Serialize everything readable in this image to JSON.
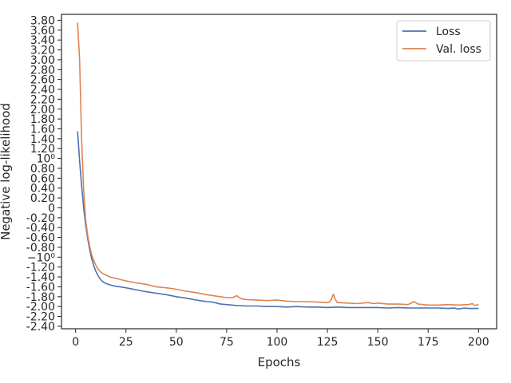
{
  "chart_data": {
    "type": "line",
    "xlabel": "Epochs",
    "ylabel": "Negative log-likelihood",
    "xlim": [
      -7,
      209
    ],
    "ylim": [
      -2.45,
      3.92
    ],
    "y_scale": "symlog",
    "grid": false,
    "legend_position": "top-right",
    "x_ticks": [
      {
        "value": 0,
        "label": "0"
      },
      {
        "value": 25,
        "label": "25"
      },
      {
        "value": 50,
        "label": "50"
      },
      {
        "value": 75,
        "label": "75"
      },
      {
        "value": 100,
        "label": "100"
      },
      {
        "value": 125,
        "label": "125"
      },
      {
        "value": 150,
        "label": "150"
      },
      {
        "value": 175,
        "label": "175"
      },
      {
        "value": 200,
        "label": "200"
      }
    ],
    "y_ticks": [
      {
        "value": 3.8,
        "label": "3.80"
      },
      {
        "value": 3.6,
        "label": "3.60"
      },
      {
        "value": 3.4,
        "label": "3.40"
      },
      {
        "value": 3.2,
        "label": "3.20"
      },
      {
        "value": 3.0,
        "label": "3.00"
      },
      {
        "value": 2.8,
        "label": "2.80"
      },
      {
        "value": 2.6,
        "label": "2.60"
      },
      {
        "value": 2.4,
        "label": "2.40"
      },
      {
        "value": 2.2,
        "label": "2.20"
      },
      {
        "value": 2.0,
        "label": "2.00"
      },
      {
        "value": 1.8,
        "label": "1.80"
      },
      {
        "value": 1.6,
        "label": "1.60"
      },
      {
        "value": 1.4,
        "label": "1.40"
      },
      {
        "value": 1.2,
        "label": "1.20"
      },
      {
        "value": 1.0,
        "label": "10⁰"
      },
      {
        "value": 0.8,
        "label": "0.80"
      },
      {
        "value": 0.6,
        "label": "0.60"
      },
      {
        "value": 0.4,
        "label": "0.40"
      },
      {
        "value": 0.2,
        "label": "0.20"
      },
      {
        "value": 0.0,
        "label": "0"
      },
      {
        "value": -0.2,
        "label": "-0.20"
      },
      {
        "value": -0.4,
        "label": "-0.40"
      },
      {
        "value": -0.6,
        "label": "-0.60"
      },
      {
        "value": -0.8,
        "label": "-0.80"
      },
      {
        "value": -1.0,
        "label": "−10⁰"
      },
      {
        "value": -1.2,
        "label": "-1.20"
      },
      {
        "value": -1.4,
        "label": "-1.40"
      },
      {
        "value": -1.6,
        "label": "-1.60"
      },
      {
        "value": -1.8,
        "label": "-1.80"
      },
      {
        "value": -2.0,
        "label": "-2.00"
      },
      {
        "value": -2.2,
        "label": "-2.20"
      },
      {
        "value": -2.4,
        "label": "-2.40"
      }
    ],
    "series": [
      {
        "name": "Loss",
        "color": "#4c72b0",
        "points": [
          [
            1,
            1.55
          ],
          [
            2,
            0.95
          ],
          [
            3,
            0.45
          ],
          [
            4,
            0.0
          ],
          [
            5,
            -0.35
          ],
          [
            6,
            -0.62
          ],
          [
            7,
            -0.85
          ],
          [
            8,
            -1.03
          ],
          [
            9,
            -1.17
          ],
          [
            10,
            -1.28
          ],
          [
            11,
            -1.36
          ],
          [
            12,
            -1.43
          ],
          [
            13,
            -1.48
          ],
          [
            14,
            -1.51
          ],
          [
            15,
            -1.53
          ],
          [
            17,
            -1.56
          ],
          [
            20,
            -1.59
          ],
          [
            22,
            -1.6
          ],
          [
            25,
            -1.62
          ],
          [
            30,
            -1.66
          ],
          [
            35,
            -1.7
          ],
          [
            40,
            -1.73
          ],
          [
            45,
            -1.76
          ],
          [
            50,
            -1.8
          ],
          [
            55,
            -1.83
          ],
          [
            60,
            -1.87
          ],
          [
            65,
            -1.9
          ],
          [
            68,
            -1.91
          ],
          [
            70,
            -1.93
          ],
          [
            72,
            -1.95
          ],
          [
            75,
            -1.96
          ],
          [
            80,
            -1.98
          ],
          [
            85,
            -1.99
          ],
          [
            90,
            -1.99
          ],
          [
            95,
            -2.0
          ],
          [
            100,
            -2.0
          ],
          [
            105,
            -2.01
          ],
          [
            110,
            -2.0
          ],
          [
            115,
            -2.01
          ],
          [
            120,
            -2.01
          ],
          [
            125,
            -2.02
          ],
          [
            130,
            -2.01
          ],
          [
            135,
            -2.02
          ],
          [
            140,
            -2.02
          ],
          [
            145,
            -2.02
          ],
          [
            150,
            -2.02
          ],
          [
            155,
            -2.03
          ],
          [
            160,
            -2.02
          ],
          [
            165,
            -2.03
          ],
          [
            170,
            -2.03
          ],
          [
            175,
            -2.03
          ],
          [
            180,
            -2.03
          ],
          [
            185,
            -2.04
          ],
          [
            188,
            -2.03
          ],
          [
            190,
            -2.05
          ],
          [
            193,
            -2.03
          ],
          [
            195,
            -2.04
          ],
          [
            198,
            -2.04
          ],
          [
            200,
            -2.04
          ]
        ]
      },
      {
        "name": "Val. loss",
        "color": "#dd8452",
        "points": [
          [
            1,
            3.75
          ],
          [
            2,
            3.0
          ],
          [
            3,
            1.4
          ],
          [
            4,
            0.35
          ],
          [
            5,
            -0.25
          ],
          [
            6,
            -0.55
          ],
          [
            7,
            -0.78
          ],
          [
            8,
            -0.95
          ],
          [
            9,
            -1.07
          ],
          [
            10,
            -1.16
          ],
          [
            11,
            -1.23
          ],
          [
            12,
            -1.28
          ],
          [
            13,
            -1.32
          ],
          [
            14,
            -1.34
          ],
          [
            15,
            -1.36
          ],
          [
            17,
            -1.4
          ],
          [
            20,
            -1.43
          ],
          [
            25,
            -1.48
          ],
          [
            30,
            -1.52
          ],
          [
            35,
            -1.55
          ],
          [
            40,
            -1.6
          ],
          [
            45,
            -1.62
          ],
          [
            50,
            -1.65
          ],
          [
            55,
            -1.69
          ],
          [
            60,
            -1.72
          ],
          [
            65,
            -1.76
          ],
          [
            70,
            -1.79
          ],
          [
            75,
            -1.82
          ],
          [
            78,
            -1.82
          ],
          [
            80,
            -1.78
          ],
          [
            82,
            -1.84
          ],
          [
            85,
            -1.86
          ],
          [
            90,
            -1.87
          ],
          [
            95,
            -1.88
          ],
          [
            100,
            -1.87
          ],
          [
            105,
            -1.89
          ],
          [
            110,
            -1.9
          ],
          [
            115,
            -1.9
          ],
          [
            120,
            -1.91
          ],
          [
            125,
            -1.92
          ],
          [
            126,
            -1.91
          ],
          [
            127,
            -1.85
          ],
          [
            128,
            -1.75
          ],
          [
            129,
            -1.86
          ],
          [
            130,
            -1.92
          ],
          [
            135,
            -1.93
          ],
          [
            140,
            -1.94
          ],
          [
            145,
            -1.92
          ],
          [
            148,
            -1.94
          ],
          [
            150,
            -1.93
          ],
          [
            155,
            -1.95
          ],
          [
            160,
            -1.95
          ],
          [
            165,
            -1.96
          ],
          [
            168,
            -1.9
          ],
          [
            170,
            -1.95
          ],
          [
            175,
            -1.97
          ],
          [
            180,
            -1.97
          ],
          [
            185,
            -1.96
          ],
          [
            190,
            -1.97
          ],
          [
            195,
            -1.96
          ],
          [
            197,
            -1.94
          ],
          [
            198,
            -1.98
          ],
          [
            200,
            -1.96
          ]
        ]
      }
    ]
  }
}
